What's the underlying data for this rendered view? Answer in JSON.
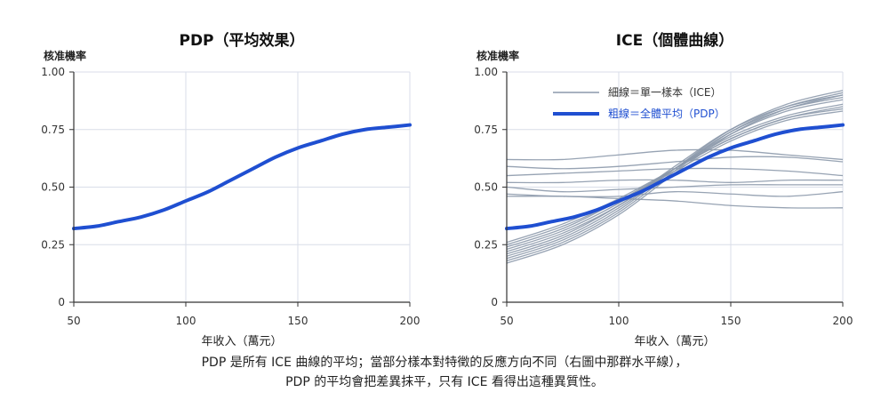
{
  "caption": {
    "line1": "PDP 是所有 ICE 曲線的平均；當部分樣本對特徵的反應方向不同（右圖中那群水平線），",
    "line2": "PDP 的平均會把差異抹平，只有 ICE 看得出這種異質性。"
  },
  "colors": {
    "pdp": "#1f4fd1",
    "ice": "#8c99ab",
    "grid": "#d9dee8",
    "axis": "#333333"
  },
  "chart_data": [
    {
      "type": "line",
      "title": "PDP（平均效果）",
      "xlabel": "年收入（萬元）",
      "ylabel": "核准機率",
      "xlim": [
        50,
        200
      ],
      "ylim": [
        0,
        1
      ],
      "xticks": [
        50,
        100,
        150,
        200
      ],
      "yticks": [
        0,
        0.25,
        0.5,
        0.75,
        1.0
      ],
      "ytick_labels": [
        "0",
        "0.25",
        "0.50",
        "0.75",
        "1.00"
      ],
      "grid": true,
      "series": [
        {
          "role": "pdp",
          "x": [
            50,
            60,
            70,
            80,
            90,
            100,
            110,
            120,
            130,
            140,
            150,
            160,
            170,
            180,
            190,
            200
          ],
          "values": [
            0.32,
            0.33,
            0.35,
            0.37,
            0.4,
            0.44,
            0.48,
            0.53,
            0.58,
            0.63,
            0.67,
            0.7,
            0.73,
            0.75,
            0.76,
            0.77
          ]
        }
      ]
    },
    {
      "type": "line",
      "title": "ICE（個體曲線）",
      "xlabel": "年收入（萬元）",
      "ylabel": "核准機率",
      "xlim": [
        50,
        200
      ],
      "ylim": [
        0,
        1
      ],
      "xticks": [
        50,
        100,
        150,
        200
      ],
      "yticks": [
        0,
        0.25,
        0.5,
        0.75,
        1.0
      ],
      "ytick_labels": [
        "0",
        "0.25",
        "0.50",
        "0.75",
        "1.00"
      ],
      "grid": true,
      "legend": {
        "position": "top-center",
        "items": [
          {
            "label": "細線＝單一樣本（ICE）",
            "role": "ice"
          },
          {
            "label": "粗線＝全體平均（PDP）",
            "role": "pdp"
          }
        ]
      },
      "ice_x": [
        50,
        75,
        100,
        125,
        150,
        175,
        200
      ],
      "series": [
        {
          "role": "ice",
          "values": [
            0.17,
            0.25,
            0.38,
            0.56,
            0.73,
            0.84,
            0.9
          ]
        },
        {
          "role": "ice",
          "values": [
            0.18,
            0.26,
            0.39,
            0.57,
            0.74,
            0.85,
            0.91
          ]
        },
        {
          "role": "ice",
          "values": [
            0.19,
            0.27,
            0.4,
            0.58,
            0.75,
            0.86,
            0.92
          ]
        },
        {
          "role": "ice",
          "values": [
            0.2,
            0.28,
            0.41,
            0.58,
            0.74,
            0.84,
            0.89
          ]
        },
        {
          "role": "ice",
          "values": [
            0.21,
            0.29,
            0.42,
            0.59,
            0.75,
            0.85,
            0.9
          ]
        },
        {
          "role": "ice",
          "values": [
            0.22,
            0.3,
            0.42,
            0.58,
            0.73,
            0.83,
            0.88
          ]
        },
        {
          "role": "ice",
          "values": [
            0.23,
            0.31,
            0.43,
            0.58,
            0.72,
            0.81,
            0.86
          ]
        },
        {
          "role": "ice",
          "values": [
            0.24,
            0.32,
            0.44,
            0.58,
            0.71,
            0.8,
            0.84
          ]
        },
        {
          "role": "ice",
          "values": [
            0.25,
            0.33,
            0.44,
            0.57,
            0.7,
            0.79,
            0.83
          ]
        },
        {
          "role": "ice",
          "values": [
            0.26,
            0.34,
            0.45,
            0.58,
            0.71,
            0.8,
            0.85
          ]
        },
        {
          "role": "ice",
          "values": [
            0.62,
            0.62,
            0.64,
            0.66,
            0.66,
            0.64,
            0.62
          ]
        },
        {
          "role": "ice",
          "values": [
            0.59,
            0.58,
            0.59,
            0.61,
            0.63,
            0.63,
            0.61
          ]
        },
        {
          "role": "ice",
          "values": [
            0.55,
            0.56,
            0.57,
            0.58,
            0.58,
            0.57,
            0.55
          ]
        },
        {
          "role": "ice",
          "values": [
            0.52,
            0.52,
            0.53,
            0.53,
            0.52,
            0.53,
            0.53
          ]
        },
        {
          "role": "ice",
          "values": [
            0.5,
            0.48,
            0.49,
            0.5,
            0.51,
            0.51,
            0.51
          ]
        },
        {
          "role": "ice",
          "values": [
            0.47,
            0.46,
            0.46,
            0.48,
            0.47,
            0.46,
            0.48
          ]
        },
        {
          "role": "ice",
          "values": [
            0.46,
            0.46,
            0.45,
            0.44,
            0.42,
            0.41,
            0.41
          ]
        },
        {
          "role": "pdp",
          "x": [
            50,
            60,
            70,
            80,
            90,
            100,
            110,
            120,
            130,
            140,
            150,
            160,
            170,
            180,
            190,
            200
          ],
          "values": [
            0.32,
            0.33,
            0.35,
            0.37,
            0.4,
            0.44,
            0.48,
            0.53,
            0.58,
            0.63,
            0.67,
            0.7,
            0.73,
            0.75,
            0.76,
            0.77
          ]
        }
      ]
    }
  ]
}
